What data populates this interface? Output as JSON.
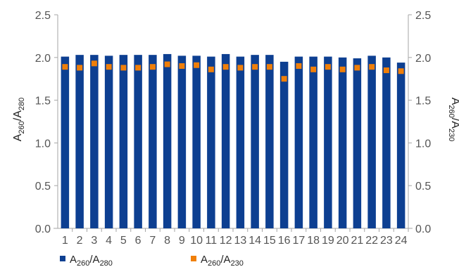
{
  "chart_data": {
    "type": "bar",
    "categories": [
      "1",
      "2",
      "3",
      "4",
      "5",
      "6",
      "7",
      "8",
      "9",
      "10",
      "11",
      "12",
      "13",
      "14",
      "15",
      "16",
      "17",
      "18",
      "19",
      "20",
      "21",
      "22",
      "23",
      "24"
    ],
    "series": [
      {
        "name": "A260/A280",
        "kind": "bar",
        "axis": "left",
        "color": "#0d3f91",
        "values": [
          2.01,
          2.03,
          2.03,
          2.02,
          2.03,
          2.03,
          2.03,
          2.04,
          2.02,
          2.02,
          2.01,
          2.04,
          2.01,
          2.03,
          2.03,
          1.95,
          2.01,
          2.01,
          2.01,
          2.0,
          1.99,
          2.02,
          2.0,
          1.94
        ]
      },
      {
        "name": "A260/A230",
        "kind": "marker",
        "axis": "right",
        "color": "#f07f09",
        "values": [
          1.89,
          1.88,
          1.93,
          1.89,
          1.88,
          1.88,
          1.89,
          1.92,
          1.9,
          1.91,
          1.86,
          1.89,
          1.88,
          1.89,
          1.89,
          1.75,
          1.9,
          1.86,
          1.89,
          1.86,
          1.88,
          1.89,
          1.85,
          1.84
        ]
      }
    ],
    "ylim": [
      0,
      2.5
    ],
    "y2lim": [
      0,
      2.5
    ],
    "yticks": [
      "0.0",
      "0.5",
      "1.0",
      "1.5",
      "2.0",
      "2.5"
    ],
    "ylabel": {
      "base": "A",
      "sub1": "260",
      "sep": "/A",
      "sub2": "280"
    },
    "y2label": {
      "base": "A",
      "sub1": "260",
      "sep": "/A",
      "sub2": "230"
    },
    "legend": [
      {
        "base": "A",
        "sub1": "260",
        "sep": "/A",
        "sub2": "280",
        "color": "#0d3f91",
        "shape": "square"
      },
      {
        "base": "A",
        "sub1": "260",
        "sep": "/A",
        "sub2": "230",
        "color": "#f07f09",
        "shape": "square"
      }
    ],
    "legend_position": "bottom-left",
    "grid": false
  }
}
